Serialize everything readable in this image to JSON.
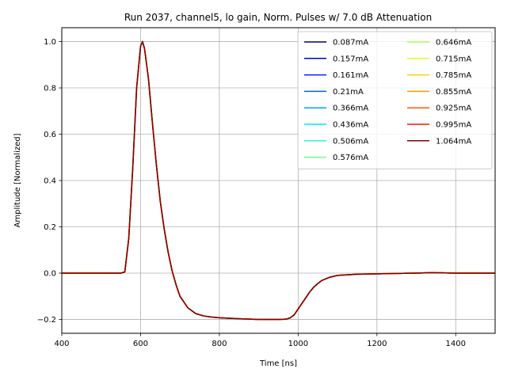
{
  "chart_data": {
    "type": "line",
    "title": "Run 2037, channel5, lo gain, Norm. Pulses w/ 7.0 dB Attenuation",
    "xlabel": "Time [ns]",
    "ylabel": "Amplitude [Normalized]",
    "xlim": [
      400,
      1500
    ],
    "ylim": [
      -0.26,
      1.06
    ],
    "xticks": [
      400,
      600,
      800,
      1000,
      1200,
      1400
    ],
    "xtick_labels": [
      "400",
      "600",
      "800",
      "1000",
      "1200",
      "1400"
    ],
    "yticks": [
      -0.2,
      0.0,
      0.2,
      0.4,
      0.6,
      0.8,
      1.0
    ],
    "ytick_labels": [
      "−0.2",
      "0.0",
      "0.2",
      "0.4",
      "0.6",
      "0.8",
      "1.0"
    ],
    "grid": true,
    "legend_position": "top-right",
    "legend_columns": 2,
    "x": [
      400,
      450,
      500,
      550,
      560,
      570,
      580,
      590,
      600,
      605,
      610,
      620,
      630,
      640,
      650,
      660,
      670,
      680,
      690,
      700,
      720,
      740,
      760,
      780,
      800,
      850,
      900,
      950,
      970,
      980,
      990,
      1000,
      1010,
      1020,
      1030,
      1040,
      1050,
      1060,
      1080,
      1100,
      1150,
      1200,
      1300,
      1340,
      1400,
      1500
    ],
    "series": [
      {
        "name": "0.087mA",
        "color": "#000080",
        "values": [
          0,
          0,
          0,
          0,
          0.005,
          0.15,
          0.45,
          0.8,
          0.98,
          1.0,
          0.97,
          0.84,
          0.65,
          0.47,
          0.31,
          0.19,
          0.09,
          0.01,
          -0.05,
          -0.1,
          -0.15,
          -0.175,
          -0.185,
          -0.19,
          -0.193,
          -0.197,
          -0.2,
          -0.2,
          -0.199,
          -0.193,
          -0.18,
          -0.155,
          -0.13,
          -0.105,
          -0.08,
          -0.06,
          -0.045,
          -0.032,
          -0.018,
          -0.01,
          -0.005,
          -0.003,
          0,
          0.002,
          0,
          0
        ]
      },
      {
        "name": "0.157mA",
        "color": "#0000c8",
        "values": [
          0,
          0,
          0,
          0,
          0.005,
          0.15,
          0.45,
          0.8,
          0.98,
          1.0,
          0.97,
          0.84,
          0.65,
          0.47,
          0.31,
          0.19,
          0.09,
          0.01,
          -0.05,
          -0.1,
          -0.15,
          -0.175,
          -0.185,
          -0.19,
          -0.193,
          -0.197,
          -0.2,
          -0.2,
          -0.199,
          -0.193,
          -0.18,
          -0.155,
          -0.13,
          -0.105,
          -0.08,
          -0.06,
          -0.045,
          -0.032,
          -0.018,
          -0.01,
          -0.005,
          -0.003,
          0,
          0.002,
          0,
          0
        ]
      },
      {
        "name": "0.161mA",
        "color": "#0020ff",
        "values": [
          0,
          0,
          0,
          0,
          0.005,
          0.15,
          0.45,
          0.8,
          0.98,
          1.0,
          0.97,
          0.84,
          0.65,
          0.47,
          0.31,
          0.19,
          0.09,
          0.01,
          -0.05,
          -0.1,
          -0.15,
          -0.175,
          -0.185,
          -0.19,
          -0.193,
          -0.197,
          -0.2,
          -0.2,
          -0.199,
          -0.193,
          -0.18,
          -0.155,
          -0.13,
          -0.105,
          -0.08,
          -0.06,
          -0.045,
          -0.032,
          -0.018,
          -0.01,
          -0.005,
          -0.003,
          0,
          0.002,
          0,
          0
        ]
      },
      {
        "name": "0.21mA",
        "color": "#0060ff",
        "values": [
          0,
          0,
          0,
          0,
          0.005,
          0.15,
          0.45,
          0.8,
          0.98,
          1.0,
          0.97,
          0.84,
          0.65,
          0.47,
          0.31,
          0.19,
          0.09,
          0.01,
          -0.05,
          -0.1,
          -0.15,
          -0.175,
          -0.185,
          -0.19,
          -0.193,
          -0.197,
          -0.2,
          -0.2,
          -0.199,
          -0.193,
          -0.18,
          -0.155,
          -0.13,
          -0.105,
          -0.08,
          -0.06,
          -0.045,
          -0.032,
          -0.018,
          -0.01,
          -0.005,
          -0.003,
          0,
          0.002,
          0,
          0
        ]
      },
      {
        "name": "0.366mA",
        "color": "#00a0ff",
        "values": [
          0,
          0,
          0,
          0,
          0.005,
          0.15,
          0.45,
          0.8,
          0.98,
          1.0,
          0.97,
          0.84,
          0.65,
          0.47,
          0.31,
          0.19,
          0.09,
          0.01,
          -0.05,
          -0.1,
          -0.15,
          -0.175,
          -0.185,
          -0.19,
          -0.193,
          -0.197,
          -0.2,
          -0.2,
          -0.199,
          -0.193,
          -0.18,
          -0.155,
          -0.13,
          -0.105,
          -0.08,
          -0.06,
          -0.045,
          -0.032,
          -0.018,
          -0.01,
          -0.005,
          -0.003,
          0,
          0.002,
          0,
          0
        ]
      },
      {
        "name": "0.436mA",
        "color": "#00e0f0",
        "values": [
          0,
          0,
          0,
          0,
          0.005,
          0.15,
          0.45,
          0.8,
          0.98,
          1.0,
          0.97,
          0.84,
          0.65,
          0.47,
          0.31,
          0.19,
          0.09,
          0.01,
          -0.05,
          -0.1,
          -0.15,
          -0.175,
          -0.185,
          -0.19,
          -0.193,
          -0.197,
          -0.2,
          -0.2,
          -0.199,
          -0.193,
          -0.18,
          -0.155,
          -0.13,
          -0.105,
          -0.08,
          -0.06,
          -0.045,
          -0.032,
          -0.018,
          -0.01,
          -0.005,
          -0.003,
          0,
          0.002,
          0,
          0
        ]
      },
      {
        "name": "0.506mA",
        "color": "#30ffc8",
        "values": [
          0,
          0,
          0,
          0,
          0.005,
          0.15,
          0.45,
          0.8,
          0.98,
          1.0,
          0.97,
          0.84,
          0.65,
          0.47,
          0.31,
          0.19,
          0.09,
          0.01,
          -0.05,
          -0.1,
          -0.15,
          -0.175,
          -0.185,
          -0.19,
          -0.193,
          -0.197,
          -0.2,
          -0.2,
          -0.199,
          -0.193,
          -0.18,
          -0.155,
          -0.13,
          -0.105,
          -0.08,
          -0.06,
          -0.045,
          -0.032,
          -0.018,
          -0.01,
          -0.005,
          -0.003,
          0,
          0.002,
          0,
          0
        ]
      },
      {
        "name": "0.576mA",
        "color": "#70ff88",
        "values": [
          0,
          0,
          0,
          0,
          0.005,
          0.15,
          0.45,
          0.8,
          0.98,
          1.0,
          0.97,
          0.84,
          0.65,
          0.47,
          0.31,
          0.19,
          0.09,
          0.01,
          -0.05,
          -0.1,
          -0.15,
          -0.175,
          -0.185,
          -0.19,
          -0.193,
          -0.197,
          -0.2,
          -0.2,
          -0.199,
          -0.193,
          -0.18,
          -0.155,
          -0.13,
          -0.105,
          -0.08,
          -0.06,
          -0.045,
          -0.032,
          -0.018,
          -0.01,
          -0.005,
          -0.003,
          0,
          0.002,
          0,
          0
        ]
      },
      {
        "name": "0.646mA",
        "color": "#a8ff50",
        "values": [
          0,
          0,
          0,
          0,
          0.005,
          0.15,
          0.45,
          0.8,
          0.98,
          1.0,
          0.97,
          0.84,
          0.65,
          0.47,
          0.31,
          0.19,
          0.09,
          0.01,
          -0.05,
          -0.1,
          -0.15,
          -0.175,
          -0.185,
          -0.19,
          -0.193,
          -0.197,
          -0.2,
          -0.2,
          -0.199,
          -0.193,
          -0.18,
          -0.155,
          -0.13,
          -0.105,
          -0.08,
          -0.06,
          -0.045,
          -0.032,
          -0.018,
          -0.01,
          -0.005,
          -0.003,
          0,
          0.002,
          0,
          0
        ]
      },
      {
        "name": "0.715mA",
        "color": "#e0ff18",
        "values": [
          0,
          0,
          0,
          0,
          0.005,
          0.15,
          0.45,
          0.8,
          0.98,
          1.0,
          0.97,
          0.84,
          0.65,
          0.47,
          0.31,
          0.19,
          0.09,
          0.01,
          -0.05,
          -0.1,
          -0.15,
          -0.175,
          -0.185,
          -0.19,
          -0.193,
          -0.197,
          -0.2,
          -0.2,
          -0.199,
          -0.193,
          -0.18,
          -0.155,
          -0.13,
          -0.105,
          -0.08,
          -0.06,
          -0.045,
          -0.032,
          -0.018,
          -0.01,
          -0.005,
          -0.003,
          0,
          0.002,
          0,
          0
        ]
      },
      {
        "name": "0.785mA",
        "color": "#ffd000",
        "values": [
          0,
          0,
          0,
          0,
          0.005,
          0.15,
          0.45,
          0.8,
          0.98,
          1.0,
          0.97,
          0.84,
          0.65,
          0.47,
          0.31,
          0.19,
          0.09,
          0.01,
          -0.05,
          -0.1,
          -0.15,
          -0.175,
          -0.185,
          -0.19,
          -0.193,
          -0.197,
          -0.2,
          -0.2,
          -0.199,
          -0.193,
          -0.18,
          -0.155,
          -0.13,
          -0.105,
          -0.08,
          -0.06,
          -0.045,
          -0.032,
          -0.018,
          -0.01,
          -0.005,
          -0.003,
          0,
          0.002,
          0,
          0
        ]
      },
      {
        "name": "0.855mA",
        "color": "#ff9400",
        "values": [
          0,
          0,
          0,
          0,
          0.005,
          0.15,
          0.45,
          0.8,
          0.98,
          1.0,
          0.97,
          0.84,
          0.65,
          0.47,
          0.31,
          0.19,
          0.09,
          0.01,
          -0.05,
          -0.1,
          -0.15,
          -0.175,
          -0.185,
          -0.19,
          -0.193,
          -0.197,
          -0.2,
          -0.2,
          -0.199,
          -0.193,
          -0.18,
          -0.155,
          -0.13,
          -0.105,
          -0.08,
          -0.06,
          -0.045,
          -0.032,
          -0.018,
          -0.01,
          -0.005,
          -0.003,
          0,
          0.002,
          0,
          0
        ]
      },
      {
        "name": "0.925mA",
        "color": "#ff5800",
        "values": [
          0,
          0,
          0,
          0,
          0.005,
          0.15,
          0.45,
          0.8,
          0.98,
          1.0,
          0.97,
          0.84,
          0.65,
          0.47,
          0.31,
          0.19,
          0.09,
          0.01,
          -0.05,
          -0.1,
          -0.15,
          -0.175,
          -0.185,
          -0.19,
          -0.193,
          -0.197,
          -0.2,
          -0.2,
          -0.199,
          -0.193,
          -0.18,
          -0.155,
          -0.13,
          -0.105,
          -0.08,
          -0.06,
          -0.045,
          -0.032,
          -0.018,
          -0.01,
          -0.005,
          -0.003,
          0,
          0.002,
          0,
          0
        ]
      },
      {
        "name": "0.995mA",
        "color": "#f01800",
        "values": [
          0,
          0,
          0,
          0,
          0.005,
          0.15,
          0.45,
          0.8,
          0.98,
          1.0,
          0.97,
          0.84,
          0.65,
          0.47,
          0.31,
          0.19,
          0.09,
          0.01,
          -0.05,
          -0.1,
          -0.15,
          -0.175,
          -0.185,
          -0.19,
          -0.193,
          -0.197,
          -0.2,
          -0.2,
          -0.199,
          -0.193,
          -0.18,
          -0.155,
          -0.13,
          -0.105,
          -0.08,
          -0.06,
          -0.045,
          -0.032,
          -0.018,
          -0.01,
          -0.005,
          -0.003,
          0,
          0.002,
          0,
          0
        ]
      },
      {
        "name": "1.064mA",
        "color": "#800000",
        "values": [
          0,
          0,
          0,
          0,
          0.005,
          0.15,
          0.45,
          0.8,
          0.98,
          1.0,
          0.97,
          0.84,
          0.65,
          0.47,
          0.31,
          0.19,
          0.09,
          0.01,
          -0.05,
          -0.1,
          -0.15,
          -0.175,
          -0.185,
          -0.19,
          -0.193,
          -0.197,
          -0.2,
          -0.2,
          -0.199,
          -0.193,
          -0.18,
          -0.155,
          -0.13,
          -0.105,
          -0.08,
          -0.06,
          -0.045,
          -0.032,
          -0.018,
          -0.01,
          -0.005,
          -0.003,
          0,
          0.002,
          0,
          0
        ]
      }
    ]
  }
}
